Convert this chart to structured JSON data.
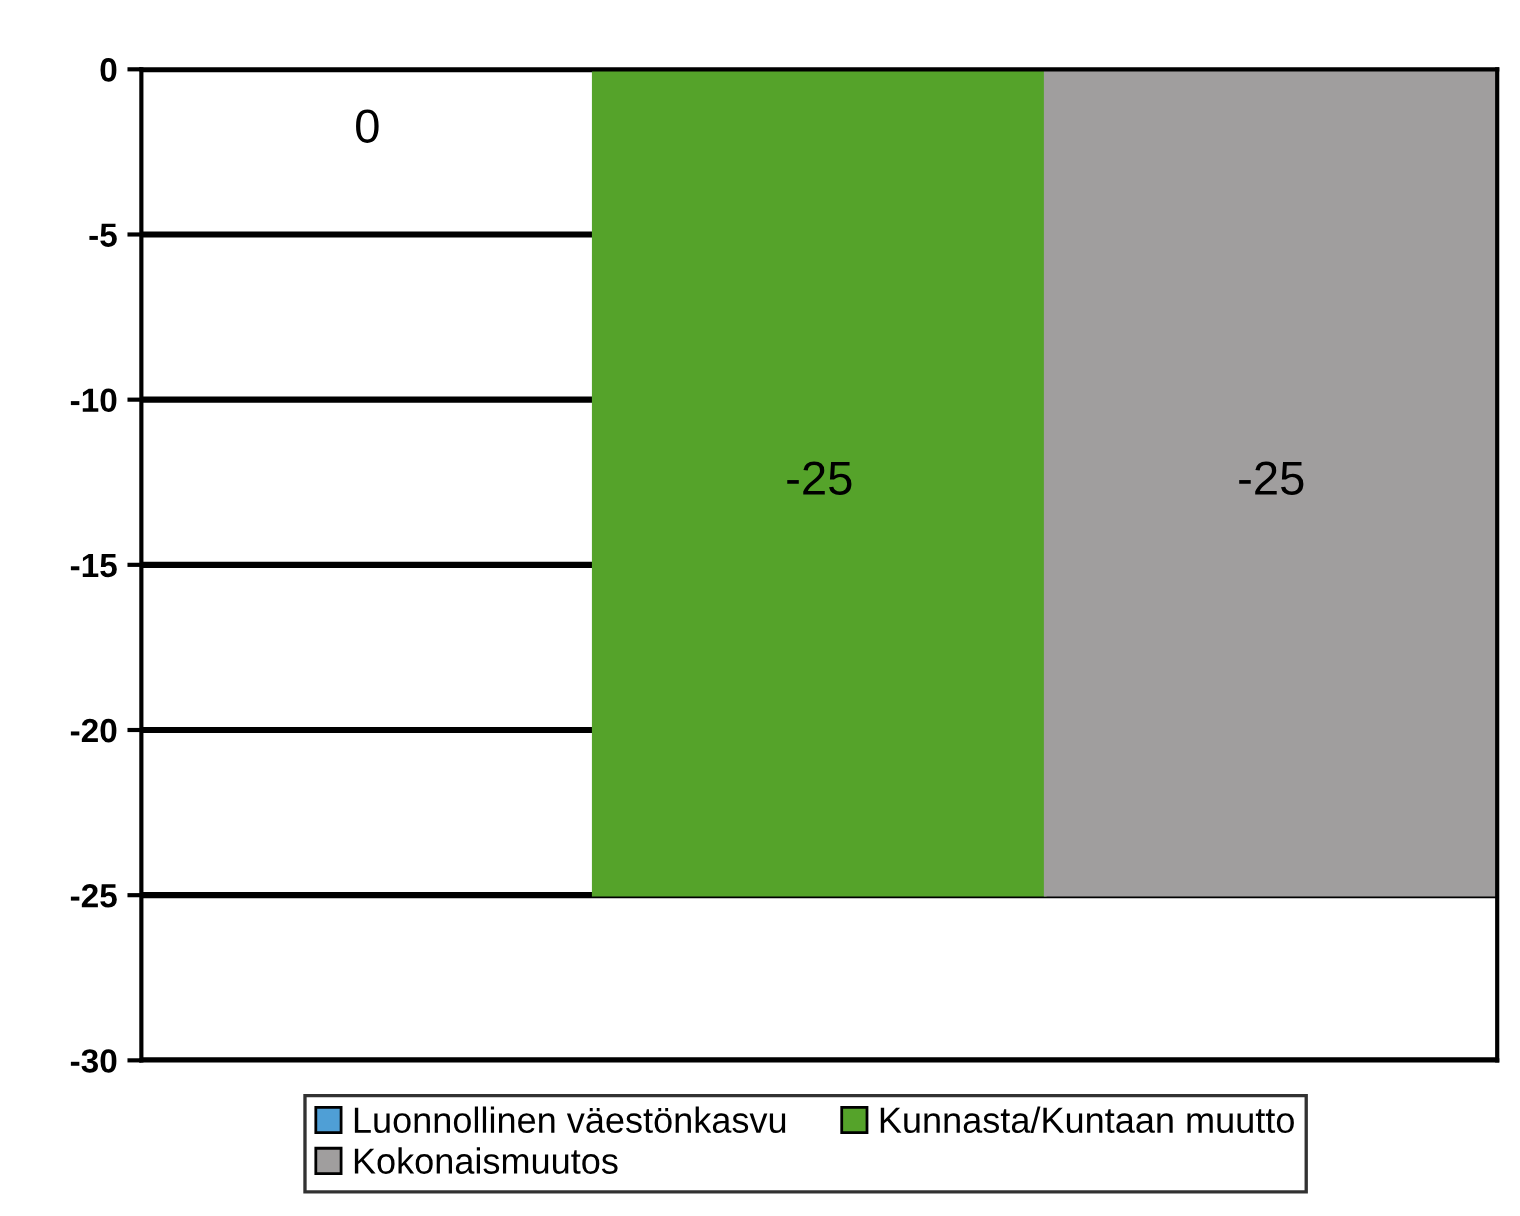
{
  "chart_data": {
    "type": "bar",
    "categories": [
      null
    ],
    "series": [
      {
        "name": "Luonnollinen väestönkasvu",
        "color": "#4f9fd6",
        "values": [
          0
        ]
      },
      {
        "name": "Kunnasta/Kuntaan muutto",
        "color": "#55a32a",
        "values": [
          -25
        ]
      },
      {
        "name": "Kokonaismuutos",
        "color": "#a09e9e",
        "values": [
          -25
        ]
      }
    ],
    "ylim": [
      -30,
      0
    ],
    "yticks": [
      0,
      -5,
      -10,
      -15,
      -20,
      -25,
      -30
    ],
    "grid": "y",
    "data_labels": true,
    "legend": "bottom"
  }
}
